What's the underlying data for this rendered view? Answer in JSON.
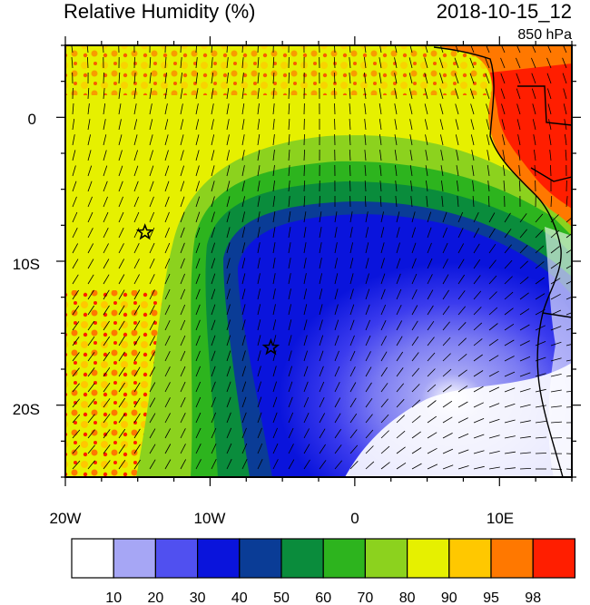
{
  "header": {
    "title": "Relative Humidity (%)",
    "datetime": "2018-10-15_12",
    "level": "850 hPa"
  },
  "map": {
    "lat_labels": [
      "0",
      "10S",
      "20S"
    ],
    "lon_labels": [
      "20W",
      "10W",
      "0",
      "10E"
    ],
    "markers": [
      {
        "name": "star-marker-north",
        "lon": -14.5,
        "lat": -8.0
      },
      {
        "name": "star-marker-south",
        "lon": -5.8,
        "lat": -16.0
      }
    ]
  },
  "colorbar": {
    "labels": [
      "10",
      "20",
      "30",
      "40",
      "50",
      "60",
      "70",
      "80",
      "90",
      "95",
      "98"
    ],
    "colors": [
      "#ffffff",
      "#a6a6f5",
      "#5050f0",
      "#0a14dc",
      "#0a3c96",
      "#0a8c3c",
      "#2db41e",
      "#8cd21e",
      "#e6f000",
      "#ffc800",
      "#ff7800",
      "#ff1e00"
    ]
  }
}
